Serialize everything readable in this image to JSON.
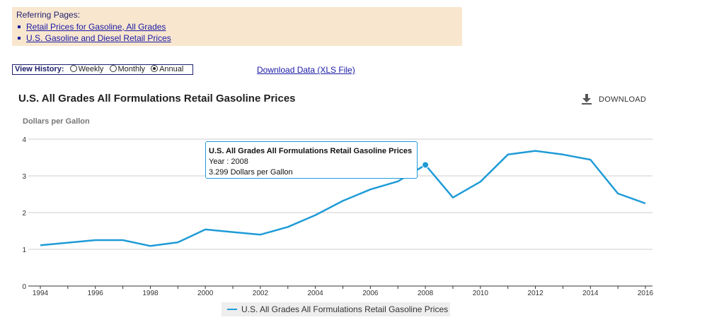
{
  "referring": {
    "title": "Referring Pages:",
    "links": [
      "Retail Prices for Gasoline, All Grades",
      "U.S. Gasoline and Diesel Retail Prices"
    ]
  },
  "history": {
    "label": "View History:",
    "options": [
      "Weekly",
      "Monthly",
      "Annual"
    ],
    "selected": "Annual"
  },
  "download_data_label": "Download Data (XLS File)",
  "download_button_label": "DOWNLOAD",
  "tooltip": {
    "title": "U.S. All Grades All Formulations Retail Gasoline Prices",
    "year_line": "Year : 2008",
    "value_line": "3.299 Dollars per Gallon"
  },
  "colors": {
    "series": "#1f9bd7",
    "reference_bg": "#f8e6cf"
  },
  "icons": {
    "download": "download-icon"
  },
  "chart_data": {
    "type": "line",
    "title": "U.S. All Grades All Formulations Retail Gasoline Prices",
    "ylabel": "Dollars per Gallon",
    "xlabel": "",
    "ylim": [
      0,
      4
    ],
    "yticks": [
      0,
      1,
      2,
      3,
      4
    ],
    "xticks": [
      1994,
      1996,
      1998,
      2000,
      2002,
      2004,
      2006,
      2008,
      2010,
      2012,
      2014,
      2016
    ],
    "grid": true,
    "legend": "bottom-center",
    "highlight": {
      "x": 2008,
      "y": 3.299
    },
    "series": [
      {
        "name": "U.S. All Grades All Formulations Retail Gasoline Prices",
        "x": [
          1994,
          1995,
          1996,
          1997,
          1998,
          1999,
          2000,
          2001,
          2002,
          2003,
          2004,
          2005,
          2006,
          2007,
          2008,
          2009,
          2010,
          2011,
          2012,
          2013,
          2014,
          2015,
          2016
        ],
        "y": [
          1.11,
          1.18,
          1.25,
          1.25,
          1.09,
          1.19,
          1.54,
          1.47,
          1.4,
          1.61,
          1.93,
          2.32,
          2.63,
          2.85,
          3.299,
          2.41,
          2.84,
          3.58,
          3.68,
          3.58,
          3.44,
          2.52,
          2.25
        ]
      }
    ]
  }
}
